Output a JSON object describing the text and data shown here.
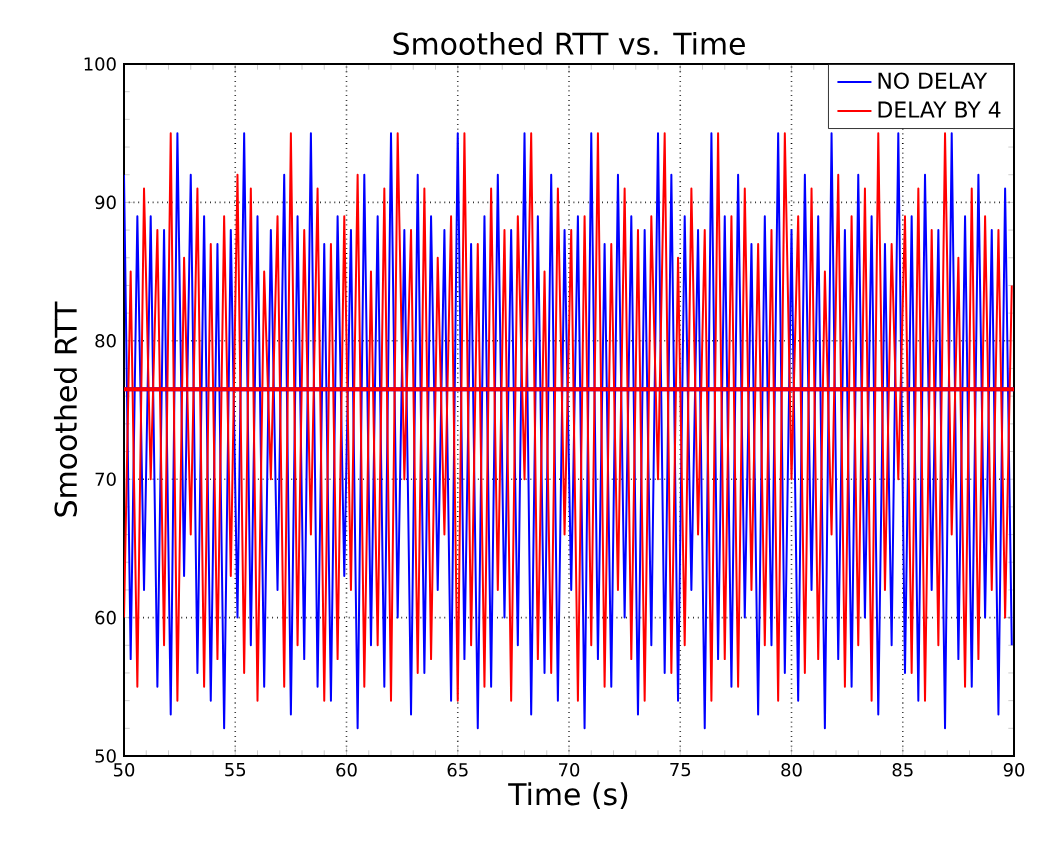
{
  "chart_data": {
    "type": "line",
    "title": "Smoothed RTT vs. Time",
    "xlabel": "Time (s)",
    "ylabel": "Smoothed RTT",
    "xlim": [
      50,
      90
    ],
    "ylim": [
      50,
      100
    ],
    "xticks": [
      50,
      55,
      60,
      65,
      70,
      75,
      80,
      85,
      90
    ],
    "yticks": [
      50,
      60,
      70,
      80,
      90,
      100
    ],
    "grid": true,
    "legend": "top right",
    "x": [
      50,
      50.3,
      50.6,
      50.9,
      51.2,
      51.5,
      51.8,
      52.1,
      52.4,
      52.7,
      53,
      53.3,
      53.6,
      53.9,
      54.2,
      54.5,
      54.8,
      55.1,
      55.4,
      55.7,
      56,
      56.3,
      56.6,
      56.9,
      57.2,
      57.5,
      57.8,
      58.1,
      58.4,
      58.7,
      59,
      59.3,
      59.6,
      59.9,
      60.2,
      60.5,
      60.8,
      61.1,
      61.4,
      61.7,
      62,
      62.3,
      62.6,
      62.9,
      63.2,
      63.5,
      63.8,
      64.1,
      64.4,
      64.7,
      65,
      65.3,
      65.6,
      65.9,
      66.2,
      66.5,
      66.8,
      67.1,
      67.4,
      67.7,
      68,
      68.3,
      68.6,
      68.9,
      69.2,
      69.5,
      69.8,
      70.1,
      70.4,
      70.7,
      71,
      71.3,
      71.6,
      71.9,
      72.2,
      72.5,
      72.8,
      73.1,
      73.4,
      73.7,
      74,
      74.3,
      74.6,
      74.9,
      75.2,
      75.5,
      75.8,
      76.1,
      76.4,
      76.7,
      77,
      77.3,
      77.6,
      77.9,
      78.2,
      78.5,
      78.8,
      79.1,
      79.4,
      79.7,
      80,
      80.3,
      80.6,
      80.9,
      81.2,
      81.5,
      81.8,
      82.1,
      82.4,
      82.7,
      83,
      83.3,
      83.6,
      83.9,
      84.2,
      84.5,
      84.8,
      85.1,
      85.4,
      85.7,
      86,
      86.3,
      86.6,
      86.9,
      87.2,
      87.5,
      87.8,
      88.1,
      88.4,
      88.7,
      89,
      89.3,
      89.6,
      89.9
    ],
    "series": [
      {
        "name": "NO DELAY",
        "color": "#0000ff",
        "values": [
          92,
          57,
          89,
          62,
          89,
          55,
          88,
          53,
          95,
          63,
          92,
          56,
          89,
          54,
          87,
          52,
          88,
          60,
          95,
          58,
          89,
          55,
          88,
          62,
          92,
          53,
          89,
          57,
          95,
          55,
          87,
          54,
          89,
          63,
          88,
          52,
          92,
          58,
          89,
          55,
          95,
          60,
          88,
          53,
          92,
          56,
          89,
          62,
          88,
          54,
          95,
          57,
          87,
          52,
          89,
          55,
          92,
          60,
          88,
          58,
          95,
          53,
          89,
          56,
          92,
          54,
          88,
          62,
          89,
          52,
          95,
          57,
          87,
          55,
          92,
          60,
          89,
          53,
          88,
          58,
          95,
          56,
          92,
          54,
          89,
          62,
          88,
          52,
          95,
          57,
          89,
          55,
          92,
          60,
          87,
          53,
          89,
          58,
          95,
          56,
          88,
          54,
          92,
          62,
          89,
          52,
          95,
          57,
          88,
          55,
          92,
          60,
          89,
          53,
          87,
          58,
          95,
          56,
          89,
          54,
          92,
          62,
          88,
          52,
          95,
          57,
          89,
          55,
          92,
          60,
          88,
          53,
          91,
          58
        ]
      },
      {
        "name": "DELAY BY 4",
        "color": "#ff0000",
        "values": [
          60,
          85,
          55,
          91,
          70,
          88,
          58,
          95,
          54,
          86,
          66,
          91,
          55,
          87,
          57,
          89,
          63,
          92,
          56,
          91,
          54,
          85,
          70,
          89,
          55,
          95,
          58,
          88,
          66,
          91,
          54,
          87,
          57,
          89,
          62,
          92,
          55,
          85,
          58,
          91,
          54,
          95,
          70,
          88,
          56,
          91,
          57,
          86,
          66,
          89,
          54,
          95,
          58,
          87,
          55,
          91,
          62,
          88,
          54,
          89,
          70,
          95,
          57,
          85,
          56,
          91,
          66,
          88,
          54,
          89,
          58,
          95,
          55,
          87,
          62,
          91,
          57,
          88,
          54,
          89,
          70,
          95,
          56,
          86,
          58,
          91,
          66,
          88,
          54,
          95,
          57,
          89,
          55,
          91,
          62,
          87,
          58,
          88,
          54,
          95,
          70,
          89,
          56,
          91,
          57,
          85,
          66,
          92,
          55,
          89,
          58,
          91,
          54,
          95,
          62,
          87,
          70,
          89,
          56,
          91,
          54,
          88,
          58,
          95,
          66,
          86,
          55,
          91,
          57,
          89,
          62,
          88,
          60,
          84
        ]
      }
    ],
    "ref_lines": [
      {
        "axis": "y",
        "value": 76.5,
        "color": "#0000ff"
      },
      {
        "axis": "y",
        "value": 76.5,
        "color": "#ff0000"
      }
    ]
  }
}
